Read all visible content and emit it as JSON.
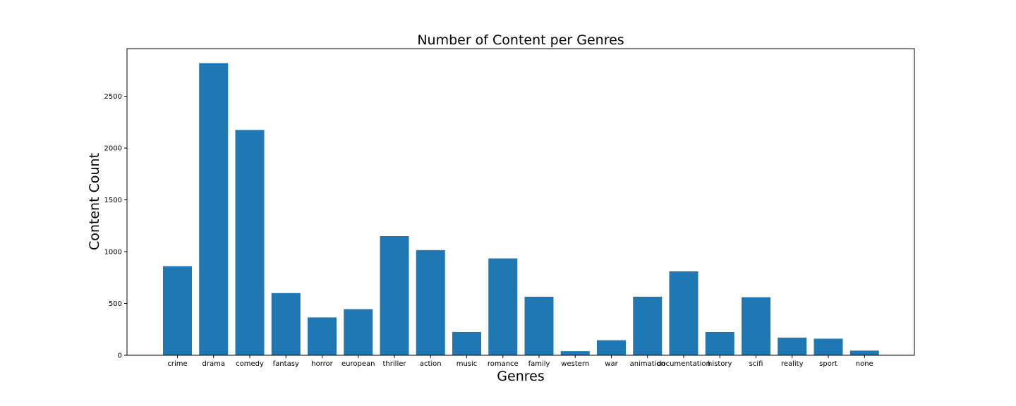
{
  "chart_data": {
    "type": "bar",
    "title": "Number of Content per Genres",
    "xlabel": "Genres",
    "ylabel": "Content Count",
    "categories": [
      "crime",
      "drama",
      "comedy",
      "fantasy",
      "horror",
      "european",
      "thriller",
      "action",
      "music",
      "romance",
      "family",
      "western",
      "war",
      "animation",
      "documentation",
      "history",
      "scifi",
      "reality",
      "sport",
      "none"
    ],
    "values": [
      860,
      2820,
      2175,
      600,
      365,
      445,
      1150,
      1015,
      225,
      935,
      565,
      40,
      145,
      565,
      810,
      225,
      560,
      170,
      160,
      45
    ],
    "ylim": [
      0,
      2960
    ],
    "yticks": [
      0,
      500,
      1000,
      1500,
      2000,
      2500
    ],
    "bar_color": "#1f77b4",
    "grid": false,
    "legend": "none"
  }
}
